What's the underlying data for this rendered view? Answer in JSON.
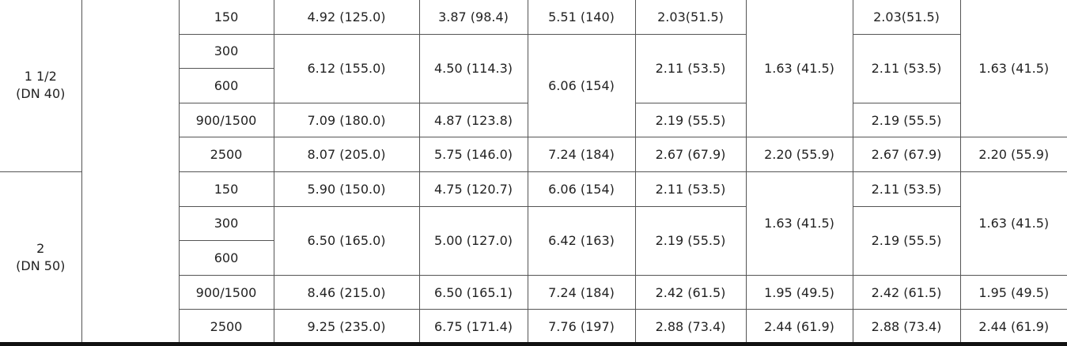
{
  "table": {
    "groups": [
      {
        "size": [
          "1 1/2",
          "(DN 40)"
        ],
        "rows": [
          [
            "150",
            "4.92 (125.0)",
            "3.87 (98.4)",
            "5.51 (140)",
            "2.03(51.5)",
            "1.63 (41.5)",
            "2.03(51.5)",
            "1.63 (41.5)"
          ],
          [
            "300",
            "6.12 (155.0)",
            "4.50 (114.3)",
            "6.06 (154)",
            "2.11 (53.5)",
            "2.11 (53.5)"
          ],
          [
            "600"
          ],
          [
            "900/1500",
            "7.09 (180.0)",
            "4.87 (123.8)",
            "2.19 (55.5)",
            "2.19 (55.5)"
          ],
          [
            "2500",
            "8.07 (205.0)",
            "5.75 (146.0)",
            "7.24 (184)",
            "2.67 (67.9)",
            "2.20 (55.9)",
            "2.67 (67.9)",
            "2.20 (55.9)"
          ]
        ]
      },
      {
        "size": [
          "2",
          "(DN 50)"
        ],
        "rows": [
          [
            "150",
            "5.90 (150.0)",
            "4.75 (120.7)",
            "6.06 (154)",
            "2.11 (53.5)",
            "1.63 (41.5)",
            "2.11 (53.5)",
            "1.63 (41.5)"
          ],
          [
            "300",
            "6.50 (165.0)",
            "5.00 (127.0)",
            "6.42 (163)",
            "2.19 (55.5)",
            "2.19 (55.5)"
          ],
          [
            "600"
          ],
          [
            "900/1500",
            "8.46 (215.0)",
            "6.50 (165.1)",
            "7.24 (184)",
            "2.42 (61.5)",
            "1.95 (49.5)",
            "2.42 (61.5)",
            "1.95 (49.5)"
          ],
          [
            "2500",
            "9.25 (235.0)",
            "6.75 (171.4)",
            "7.76 (197)",
            "2.88 (73.4)",
            "2.44 (61.9)",
            "2.88 (73.4)",
            "2.44 (61.9)"
          ]
        ]
      }
    ]
  }
}
